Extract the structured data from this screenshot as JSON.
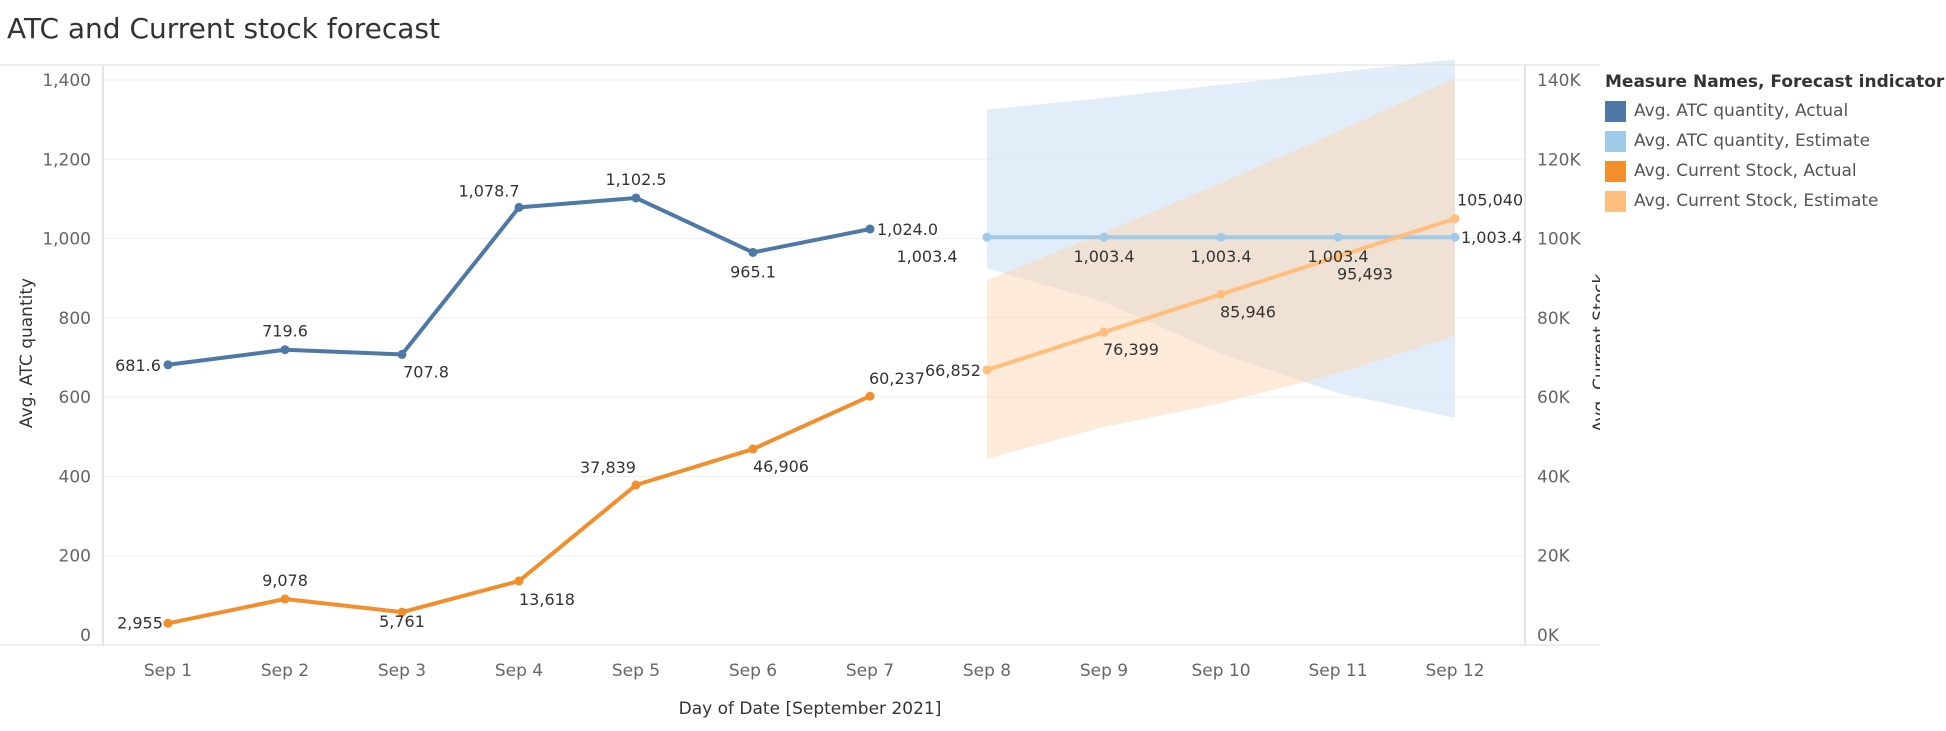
{
  "chart_data": {
    "type": "line",
    "title": "ATC and Current stock forecast",
    "xlabel": "Day of Date [September 2021]",
    "ylabel_left": "Avg. ATC quantity",
    "ylabel_right": "Avg. Current Stock",
    "categories": [
      "Sep 1",
      "Sep 2",
      "Sep 3",
      "Sep 4",
      "Sep 5",
      "Sep 6",
      "Sep 7",
      "Sep 8",
      "Sep 9",
      "Sep 10",
      "Sep 11",
      "Sep 12"
    ],
    "ylim_left": [
      0,
      1400
    ],
    "yticks_left": [
      0,
      200,
      400,
      600,
      800,
      1000,
      1200,
      1400
    ],
    "ylim_right": [
      0,
      140000
    ],
    "yticks_right": [
      0,
      20000,
      40000,
      60000,
      80000,
      100000,
      120000,
      140000
    ],
    "yticklabels_right": [
      "0K",
      "20K",
      "40K",
      "60K",
      "80K",
      "100K",
      "120K",
      "140K"
    ],
    "legend_title": "Measure Names, Forecast indicator",
    "legend_position": "right",
    "series": [
      {
        "name": "Avg. ATC quantity, Actual",
        "axis": "left",
        "color": "#4e79a7",
        "x": [
          "Sep 1",
          "Sep 2",
          "Sep 3",
          "Sep 4",
          "Sep 5",
          "Sep 6",
          "Sep 7"
        ],
        "values": [
          681.6,
          719.6,
          707.8,
          1078.7,
          1102.5,
          965.1,
          1024.0
        ],
        "labels": [
          "681.6",
          "719.6",
          "707.8",
          "1,078.7",
          "1,102.5",
          "965.1",
          "1,024.0"
        ]
      },
      {
        "name": "Avg. ATC quantity, Estimate",
        "axis": "left",
        "color": "#a0cbe8",
        "x": [
          "Sep 8",
          "Sep 9",
          "Sep 10",
          "Sep 11",
          "Sep 12"
        ],
        "values": [
          1003.4,
          1003.4,
          1003.4,
          1003.4,
          1003.4
        ],
        "labels": [
          "1,003.4",
          "1,003.4",
          "1,003.4",
          "1,003.4",
          "1,003.4"
        ],
        "band_upper": [
          1325,
          1355,
          1388,
          1420,
          1452
        ],
        "band_lower": [
          925,
          840,
          710,
          610,
          548
        ]
      },
      {
        "name": "Avg. Current Stock, Actual",
        "axis": "right",
        "color": "#f28e2b",
        "x": [
          "Sep 1",
          "Sep 2",
          "Sep 3",
          "Sep 4",
          "Sep 5",
          "Sep 6",
          "Sep 7"
        ],
        "values": [
          2955,
          9078,
          5761,
          13618,
          37839,
          46906,
          60237
        ],
        "labels": [
          "2,955",
          "9,078",
          "5,761",
          "13,618",
          "37,839",
          "46,906",
          "60,237"
        ]
      },
      {
        "name": "Avg. Current Stock, Estimate",
        "axis": "right",
        "color": "#ffbe7d",
        "x": [
          "Sep 8",
          "Sep 9",
          "Sep 10",
          "Sep 11",
          "Sep 12"
        ],
        "values": [
          66852,
          76399,
          85946,
          95493,
          105040
        ],
        "labels": [
          "66,852",
          "76,399",
          "85,946",
          "95,493",
          "105,040"
        ],
        "band_upper": [
          89500,
          101500,
          114000,
          127000,
          140500
        ],
        "band_lower": [
          44500,
          52500,
          58500,
          66000,
          75500
        ]
      }
    ]
  }
}
